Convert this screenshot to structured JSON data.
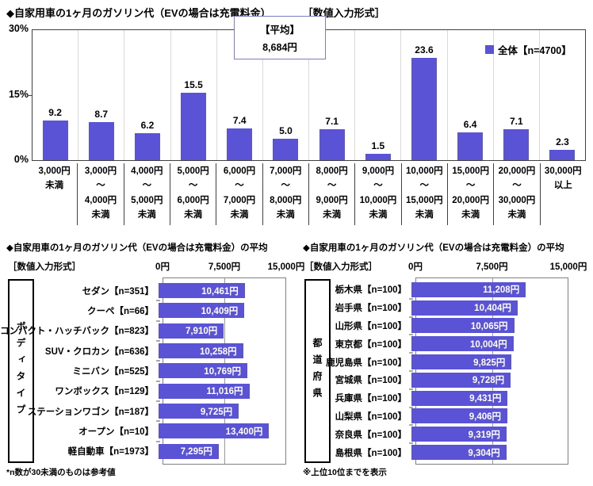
{
  "colors": {
    "accent": "#5B53D6",
    "avg_box_border": "#7C7CC0"
  },
  "chart_data": [
    {
      "type": "bar",
      "title_heading": "◆自家用車の1ヶ月のガソリン代（EVの場合は充電料金）",
      "format_label": "［数値入力形式］",
      "unit": "%",
      "ylim": [
        0,
        30
      ],
      "y_ticks_display": [
        "30%",
        "15%",
        "0%"
      ],
      "legend": "全体【n=4700】",
      "average_label": "【平均】",
      "average_value": "8,684円",
      "grid": "vertical-category-separators",
      "legend_position": "top-right",
      "categories": [
        [
          "3,000円",
          "未満"
        ],
        [
          "3,000円",
          "～",
          "4,000円",
          "未満"
        ],
        [
          "4,000円",
          "～",
          "5,000円",
          "未満"
        ],
        [
          "5,000円",
          "～",
          "6,000円",
          "未満"
        ],
        [
          "6,000円",
          "～",
          "7,000円",
          "未満"
        ],
        [
          "7,000円",
          "～",
          "8,000円",
          "未満"
        ],
        [
          "8,000円",
          "～",
          "9,000円",
          "未満"
        ],
        [
          "9,000円",
          "～",
          "10,000円",
          "未満"
        ],
        [
          "10,000円",
          "～",
          "15,000円",
          "未満"
        ],
        [
          "15,000円",
          "～",
          "20,000円",
          "未満"
        ],
        [
          "20,000円",
          "～",
          "30,000円",
          "未満"
        ],
        [
          "30,000円",
          "以上"
        ]
      ],
      "values": [
        9.2,
        8.7,
        6.2,
        15.5,
        7.4,
        5.0,
        7.1,
        1.5,
        23.6,
        6.4,
        7.1,
        2.3
      ]
    },
    {
      "type": "bar-horizontal",
      "title_heading": "◆自家用車の1ヶ月のガソリン代（EVの場合は充電料金）の平均",
      "format_label": "［数値入力形式］",
      "group_label": "ボディタイプ",
      "xlim": [
        0,
        15000
      ],
      "x_ticks": [
        "0円",
        "7,500円",
        "15,000円"
      ],
      "footnote": "*n数が30未満のものは参考値",
      "rows": [
        {
          "label": "セダン【n=351】",
          "value": 10461,
          "value_label": "10,461円"
        },
        {
          "label": "クーペ【n=66】",
          "value": 10409,
          "value_label": "10,409円"
        },
        {
          "label": "コンパクト・ハッチバック【n=823】",
          "value": 7910,
          "value_label": "7,910円"
        },
        {
          "label": "SUV・クロカン【n=636】",
          "value": 10258,
          "value_label": "10,258円"
        },
        {
          "label": "ミニバン【n=525】",
          "value": 10769,
          "value_label": "10,769円"
        },
        {
          "label": "ワンボックス【n=129】",
          "value": 11016,
          "value_label": "11,016円"
        },
        {
          "label": "ステーションワゴン【n=187】",
          "value": 9725,
          "value_label": "9,725円"
        },
        {
          "label": "オープン【n=10】",
          "value": 13400,
          "value_label": "13,400円"
        },
        {
          "label": "軽自動車【n=1973】",
          "value": 7295,
          "value_label": "7,295円"
        }
      ]
    },
    {
      "type": "bar-horizontal",
      "title_heading": "◆自家用車の1ヶ月のガソリン代（EVの場合は充電料金）の平均",
      "format_label": "［数値入力形式］",
      "group_label": "都道府県",
      "xlim": [
        0,
        15000
      ],
      "x_ticks": [
        "0円",
        "7,500円",
        "15,000円"
      ],
      "footnote": "※上位10位までを表示",
      "rows": [
        {
          "label": "栃木県【n=100】",
          "value": 11208,
          "value_label": "11,208円"
        },
        {
          "label": "岩手県【n=100】",
          "value": 10404,
          "value_label": "10,404円"
        },
        {
          "label": "山形県【n=100】",
          "value": 10065,
          "value_label": "10,065円"
        },
        {
          "label": "東京都【n=100】",
          "value": 10004,
          "value_label": "10,004円"
        },
        {
          "label": "鹿児島県【n=100】",
          "value": 9825,
          "value_label": "9,825円"
        },
        {
          "label": "宮城県【n=100】",
          "value": 9728,
          "value_label": "9,728円"
        },
        {
          "label": "兵庫県【n=100】",
          "value": 9431,
          "value_label": "9,431円"
        },
        {
          "label": "山梨県【n=100】",
          "value": 9406,
          "value_label": "9,406円"
        },
        {
          "label": "奈良県【n=100】",
          "value": 9319,
          "value_label": "9,319円"
        },
        {
          "label": "島根県【n=100】",
          "value": 9304,
          "value_label": "9,304円"
        }
      ]
    }
  ]
}
